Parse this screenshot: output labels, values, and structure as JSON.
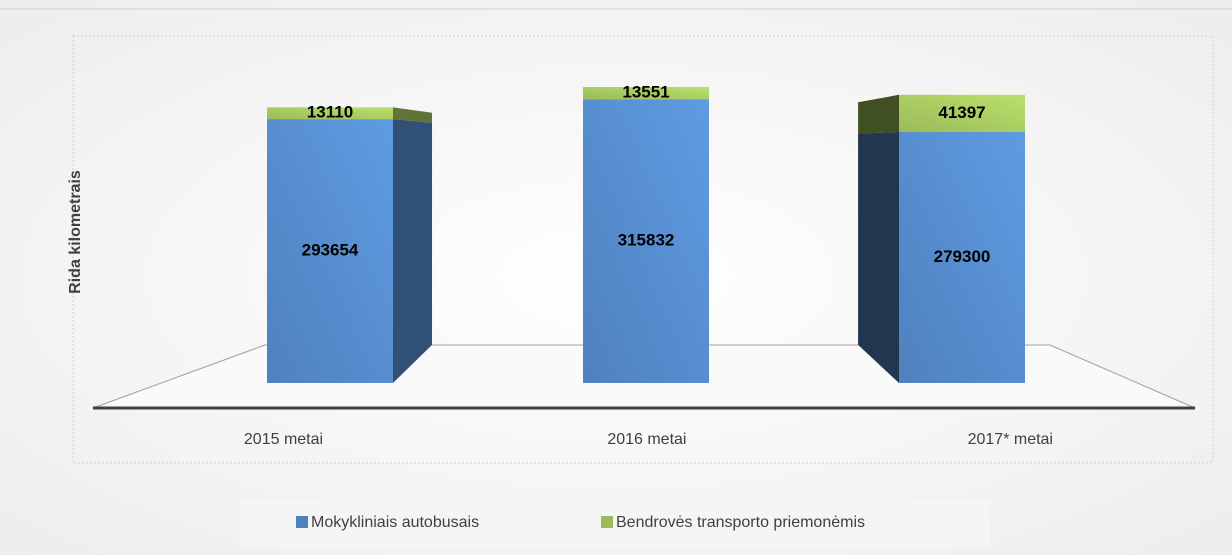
{
  "chart_data": {
    "type": "bar3d_stacked",
    "y_label": "Rida kilometrais",
    "categories": [
      "2015 metai",
      "2016 metai",
      "2017* metai"
    ],
    "series": [
      {
        "name": "Mokykliniais autobusais",
        "color": "#4f81bd",
        "values": [
          293654,
          315832,
          279300
        ]
      },
      {
        "name": "Bendrovės transporto priemonėmis",
        "color": "#9bbb59",
        "values": [
          13110,
          13551,
          41397
        ]
      }
    ],
    "legend": "bottom"
  }
}
